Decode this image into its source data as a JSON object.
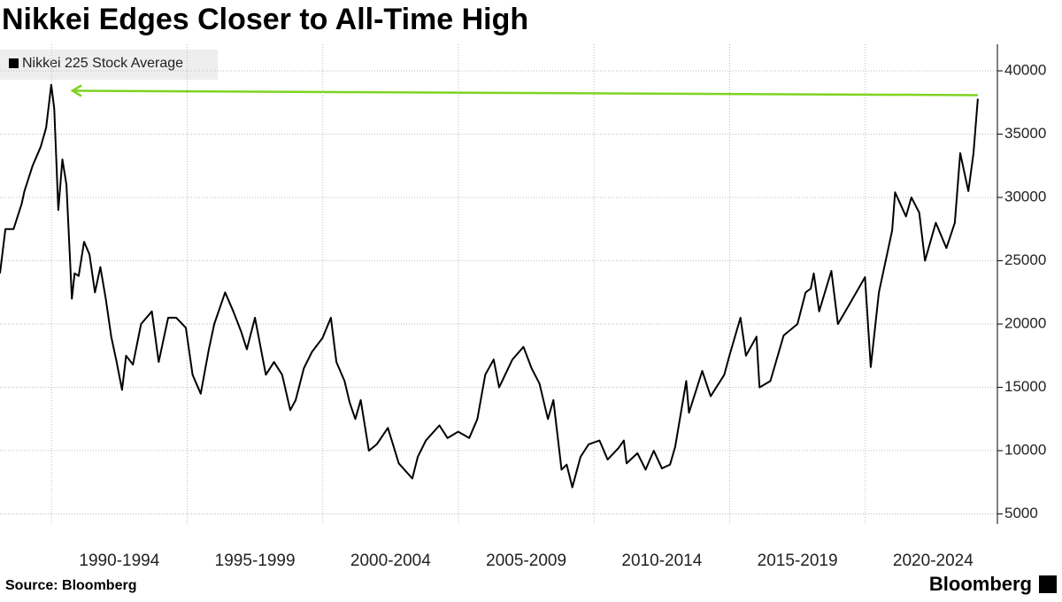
{
  "chart_data": {
    "type": "line",
    "title": "Nikkei Edges Closer to All-Time High",
    "source": "Source: Bloomberg",
    "brand": "Bloomberg",
    "x": [
      1988.1,
      1988.3,
      1988.6,
      1988.9,
      1989.0,
      1989.3,
      1989.6,
      1989.8,
      1989.99,
      1990.1,
      1990.25,
      1990.4,
      1990.55,
      1990.75,
      1990.85,
      1991.0,
      1991.2,
      1991.4,
      1991.6,
      1991.8,
      1992.0,
      1992.2,
      1992.4,
      1992.6,
      1992.75,
      1993.0,
      1993.3,
      1993.7,
      1993.95,
      1994.3,
      1994.6,
      1994.95,
      1995.2,
      1995.5,
      1995.8,
      1996.0,
      1996.4,
      1996.7,
      1996.99,
      1997.2,
      1997.5,
      1997.9,
      1998.2,
      1998.5,
      1998.8,
      1999.0,
      1999.3,
      1999.6,
      1999.99,
      2000.3,
      2000.5,
      2000.8,
      2000.99,
      2001.2,
      2001.4,
      2001.7,
      2001.99,
      2002.4,
      2002.8,
      2003.3,
      2003.5,
      2003.8,
      2004.3,
      2004.6,
      2004.99,
      2005.4,
      2005.7,
      2005.99,
      2006.3,
      2006.5,
      2006.99,
      2007.4,
      2007.7,
      2007.99,
      2008.3,
      2008.5,
      2008.8,
      2008.99,
      2009.2,
      2009.5,
      2009.8,
      2010.2,
      2010.5,
      2010.9,
      2011.1,
      2011.2,
      2011.6,
      2011.9,
      2012.2,
      2012.5,
      2012.8,
      2012.99,
      2013.4,
      2013.5,
      2013.99,
      2014.3,
      2014.8,
      2014.99,
      2015.4,
      2015.6,
      2015.99,
      2016.1,
      2016.5,
      2016.99,
      2017.5,
      2017.8,
      2017.99,
      2018.1,
      2018.3,
      2018.75,
      2018.99,
      2019.4,
      2019.99,
      2020.2,
      2020.5,
      2020.99,
      2021.1,
      2021.5,
      2021.7,
      2021.99,
      2022.2,
      2022.6,
      2022.99,
      2023.3,
      2023.5,
      2023.8,
      2023.99,
      2024.1,
      2024.15
    ],
    "series": [
      {
        "name": "Nikkei 225 Stock Average",
        "color": "#000000",
        "values": [
          24000,
          27500,
          27500,
          29500,
          30500,
          32500,
          34000,
          35500,
          38900,
          37000,
          29000,
          33000,
          31000,
          22000,
          24000,
          23800,
          26500,
          25500,
          22500,
          24500,
          22000,
          19000,
          17000,
          14800,
          17500,
          16800,
          20000,
          21000,
          17000,
          20500,
          20500,
          19700,
          16000,
          14500,
          18000,
          20000,
          22500,
          21000,
          19400,
          18000,
          20500,
          16000,
          17000,
          16000,
          13200,
          14000,
          16500,
          17800,
          18900,
          20500,
          17000,
          15500,
          13800,
          12500,
          14000,
          10000,
          10500,
          11800,
          9000,
          7800,
          9500,
          10800,
          12000,
          11000,
          11500,
          11000,
          12500,
          16000,
          17200,
          15000,
          17200,
          18200,
          16500,
          15300,
          12500,
          14000,
          8500,
          8900,
          7100,
          9500,
          10500,
          10800,
          9300,
          10200,
          10800,
          9000,
          9800,
          8500,
          10000,
          8600,
          8900,
          10300,
          15500,
          13000,
          16300,
          14300,
          16000,
          17500,
          20500,
          17500,
          19000,
          15000,
          15500,
          19100,
          20000,
          22500,
          22800,
          24000,
          21000,
          24200,
          20000,
          21500,
          23700,
          16600,
          22500,
          27400,
          30400,
          28500,
          30000,
          28800,
          25000,
          28000,
          26000,
          28000,
          33500,
          30500,
          33500,
          36500,
          37800
        ]
      }
    ],
    "xlim": [
      1988.1,
      2024.87
    ],
    "xticks": [
      {
        "value": 1990,
        "label": "1990-1994"
      },
      {
        "value": 1995,
        "label": "1995-1999"
      },
      {
        "value": 2000,
        "label": "2000-2004"
      },
      {
        "value": 2005,
        "label": "2005-2009"
      },
      {
        "value": 2010,
        "label": "2010-2014"
      },
      {
        "value": 2015,
        "label": "2015-2019"
      },
      {
        "value": 2020,
        "label": "2020-2024"
      }
    ],
    "ylim": [
      4200,
      42100
    ],
    "yticks": [
      5000,
      10000,
      15000,
      20000,
      25000,
      30000,
      35000,
      40000
    ],
    "grid": true,
    "arrow_color": "#7ed321"
  }
}
